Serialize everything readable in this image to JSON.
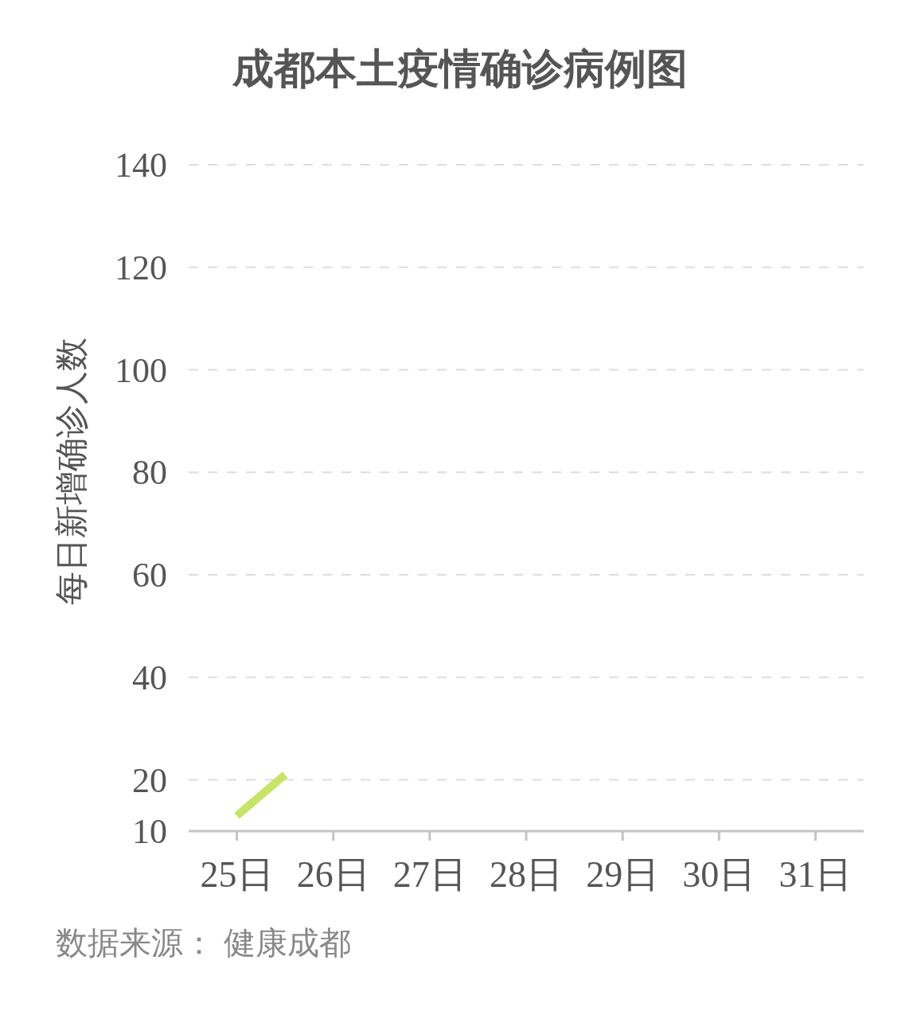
{
  "chart_data": {
    "type": "line",
    "title": "成都本土疫情确诊病例图",
    "ylabel": "每日新增确诊人数",
    "annotations": [
      "数据来源： 健康成都"
    ],
    "x": [
      25,
      25.5
    ],
    "values": [
      13,
      21
    ],
    "color": "#c8e36a",
    "line_style": "solid",
    "xlim": [
      24.5,
      31.5
    ],
    "xticks": [
      {
        "value": 25,
        "label": "25日"
      },
      {
        "value": 26,
        "label": "26日"
      },
      {
        "value": 27,
        "label": "27日"
      },
      {
        "value": 28,
        "label": "28日"
      },
      {
        "value": 29,
        "label": "29日"
      },
      {
        "value": 30,
        "label": "30日"
      },
      {
        "value": 31,
        "label": "31日"
      }
    ],
    "ylim": [
      10,
      140
    ],
    "yticks": [
      10,
      20,
      40,
      60,
      80,
      100,
      120,
      140
    ],
    "grid": "y"
  }
}
